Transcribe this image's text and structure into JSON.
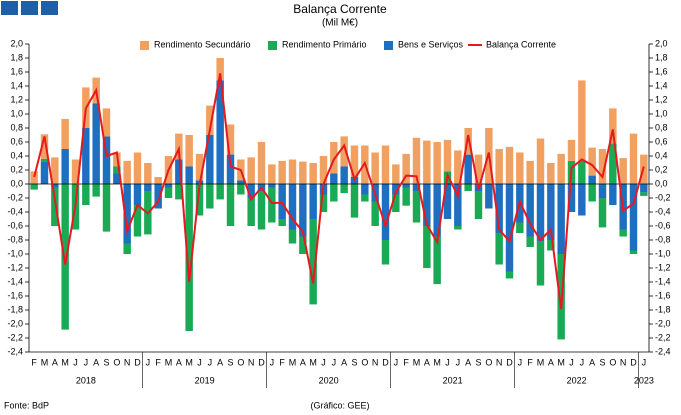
{
  "chart_data": {
    "type": "bar",
    "title": "Balança Corrente",
    "subtitle": "(Mil M€)",
    "source": "Fonte: BdP",
    "credit": "(Gráfico: GEE)",
    "categories": [
      "F",
      "M",
      "A",
      "M",
      "J",
      "J",
      "A",
      "S",
      "O",
      "N",
      "D",
      "J",
      "F",
      "M",
      "A",
      "M",
      "J",
      "J",
      "A",
      "S",
      "O",
      "N",
      "D",
      "J",
      "F",
      "M",
      "A",
      "M",
      "J",
      "J",
      "A",
      "S",
      "O",
      "N",
      "D",
      "J",
      "F",
      "M",
      "A",
      "M",
      "J",
      "J",
      "A",
      "S",
      "O",
      "N",
      "D",
      "J",
      "F",
      "M",
      "A",
      "M",
      "J",
      "J",
      "A",
      "S",
      "O",
      "N",
      "D",
      "J"
    ],
    "years": [
      "2018",
      "2019",
      "2020",
      "2021",
      "2022",
      "2023"
    ],
    "series": [
      {
        "name": "Rendimento Secundário",
        "type": "bar",
        "color": "#f0a060",
        "values": [
          0.18,
          0.35,
          0.38,
          0.43,
          0.35,
          0.58,
          0.37,
          0.4,
          0.2,
          0.33,
          0.45,
          0.3,
          0.1,
          0.4,
          0.37,
          0.45,
          0.38,
          0.42,
          0.32,
          0.43,
          0.3,
          0.38,
          0.6,
          0.28,
          0.33,
          0.35,
          0.32,
          0.3,
          0.4,
          0.45,
          0.43,
          0.45,
          0.55,
          0.45,
          0.55,
          0.28,
          0.43,
          0.66,
          0.62,
          0.6,
          0.45,
          0.48,
          0.38,
          0.42,
          0.8,
          0.5,
          0.53,
          0.45,
          0.33,
          0.65,
          0.3,
          0.43,
          0.3,
          1.15,
          0.4,
          0.5,
          0.5,
          0.37,
          0.72,
          0.42
        ]
      },
      {
        "name": "Rendimento Primário",
        "type": "bar",
        "color": "#1aaa55",
        "values": [
          -0.08,
          0.04,
          -0.55,
          -2.08,
          -0.65,
          -0.3,
          -0.18,
          -0.68,
          0.1,
          -0.15,
          -0.45,
          -0.62,
          0,
          -0.15,
          -0.22,
          -2.1,
          -0.45,
          -0.35,
          -0.22,
          -0.6,
          -0.15,
          -0.4,
          -0.55,
          -0.5,
          -0.1,
          -0.2,
          -0.25,
          -1.22,
          -0.25,
          -0.25,
          -0.13,
          -0.48,
          -0.1,
          -0.35,
          -0.35,
          -0.25,
          -0.26,
          -0.45,
          -0.6,
          -0.68,
          0.18,
          -0.05,
          -0.1,
          -0.4,
          0,
          -0.45,
          -0.1,
          -0.15,
          -0.15,
          -0.63,
          -0.15,
          -1.22,
          0.33,
          0.33,
          -0.25,
          -0.42,
          0.58,
          -0.1,
          -0.05,
          -0.05
        ]
      },
      {
        "name": "Bens e Serviços",
        "type": "bar",
        "color": "#1f6fc0",
        "values": [
          0,
          0.32,
          -0.05,
          0.5,
          0,
          0.8,
          1.15,
          0.68,
          0.15,
          -0.85,
          -0.3,
          -0.1,
          -0.35,
          -0.05,
          0.35,
          0.25,
          0.05,
          0.7,
          1.48,
          0.42,
          0.05,
          -0.2,
          -0.1,
          -0.05,
          -0.5,
          -0.65,
          -0.75,
          -0.5,
          -0.15,
          0.15,
          0.25,
          0.1,
          -0.15,
          -0.25,
          -0.8,
          -0.15,
          -0.05,
          -0.1,
          -0.6,
          -0.75,
          -0.5,
          -0.6,
          0.42,
          -0.1,
          -0.35,
          -0.7,
          -1.25,
          -0.55,
          -0.75,
          -0.82,
          -0.8,
          -1.0,
          -0.4,
          -0.45,
          0.12,
          -0.2,
          -0.3,
          -0.65,
          -0.95,
          -0.12
        ]
      },
      {
        "name": "Balança Corrente",
        "type": "line",
        "color": "#e8191e",
        "values": [
          0.1,
          0.68,
          -0.22,
          -1.15,
          -0.3,
          1.08,
          1.34,
          0.4,
          0.45,
          -0.67,
          -0.3,
          -0.42,
          -0.25,
          0.2,
          0.5,
          -1.4,
          -0.02,
          0.77,
          1.58,
          0.25,
          0.2,
          -0.22,
          -0.05,
          -0.27,
          -0.27,
          -0.5,
          -0.68,
          -1.42,
          0,
          0.35,
          0.55,
          0.07,
          0.3,
          -0.15,
          -0.6,
          -0.12,
          0.12,
          0.11,
          -0.58,
          -0.83,
          0.13,
          -0.17,
          0.7,
          -0.08,
          0.45,
          -0.65,
          -0.82,
          -0.25,
          -0.57,
          -0.8,
          -0.65,
          -1.79,
          0.23,
          0.35,
          0.27,
          0.1,
          0.78,
          -0.38,
          -0.28,
          0.25
        ]
      }
    ],
    "ylim": [
      -2.4,
      2.0
    ],
    "yticks": [
      {
        "value": 2.0,
        "label": "2,0"
      },
      {
        "value": 1.8,
        "label": "1,8"
      },
      {
        "value": 1.6,
        "label": "1,6"
      },
      {
        "value": 1.4,
        "label": "1,4"
      },
      {
        "value": 1.2,
        "label": "1,2"
      },
      {
        "value": 1.0,
        "label": "1,0"
      },
      {
        "value": 0.8,
        "label": "0,8"
      },
      {
        "value": 0.6,
        "label": "0,6"
      },
      {
        "value": 0.4,
        "label": "0,4"
      },
      {
        "value": 0.2,
        "label": "0,2"
      },
      {
        "value": 0.0,
        "label": "0,0"
      },
      {
        "value": -0.2,
        "label": "-0,2"
      },
      {
        "value": -0.4,
        "label": "-0,4"
      },
      {
        "value": -0.6,
        "label": "-0,6"
      },
      {
        "value": -0.8,
        "label": "-0,8"
      },
      {
        "value": -1.0,
        "label": "-1,0"
      },
      {
        "value": -1.2,
        "label": "-1,2"
      },
      {
        "value": -1.4,
        "label": "-1,4"
      },
      {
        "value": -1.6,
        "label": "-1,6"
      },
      {
        "value": -1.8,
        "label": "-1,8"
      },
      {
        "value": -2.0,
        "label": "-2,0"
      },
      {
        "value": -2.2,
        "label": "-2,2"
      },
      {
        "value": -2.4,
        "label": "-2,4"
      }
    ],
    "y2lim": [
      -2.4,
      2.0
    ],
    "y2ticks": [
      {
        "value": 2.0,
        "label": "2,0"
      },
      {
        "value": 1.8,
        "label": "1,8"
      },
      {
        "value": 1.6,
        "label": "1,6"
      },
      {
        "value": 1.4,
        "label": "1,4"
      },
      {
        "value": 1.2,
        "label": "1,2"
      },
      {
        "value": 1.0,
        "label": "1,0"
      },
      {
        "value": 0.8,
        "label": "0,8"
      },
      {
        "value": 0.6,
        "label": "0,6"
      },
      {
        "value": 0.4,
        "label": "0,4"
      },
      {
        "value": 0.2,
        "label": "0,2"
      },
      {
        "value": 0.0,
        "label": "0,0"
      },
      {
        "value": -0.2,
        "label": "-0,2"
      },
      {
        "value": -0.4,
        "label": "-0,4"
      },
      {
        "value": -0.6,
        "label": "-0,6"
      },
      {
        "value": -0.8,
        "label": "-0,8"
      },
      {
        "value": -1.0,
        "label": "-1,0"
      },
      {
        "value": -1.2,
        "label": "-1,2"
      },
      {
        "value": -1.4,
        "label": "-1,4"
      },
      {
        "value": -1.6,
        "label": "-1,6"
      },
      {
        "value": -1.8,
        "label": "-1,8"
      },
      {
        "value": -2.0,
        "label": "-2,0"
      },
      {
        "value": -2.2,
        "label": "-2,2"
      },
      {
        "value": -2.4,
        "label": "-2,4"
      }
    ],
    "legend": "top",
    "grid": false
  }
}
